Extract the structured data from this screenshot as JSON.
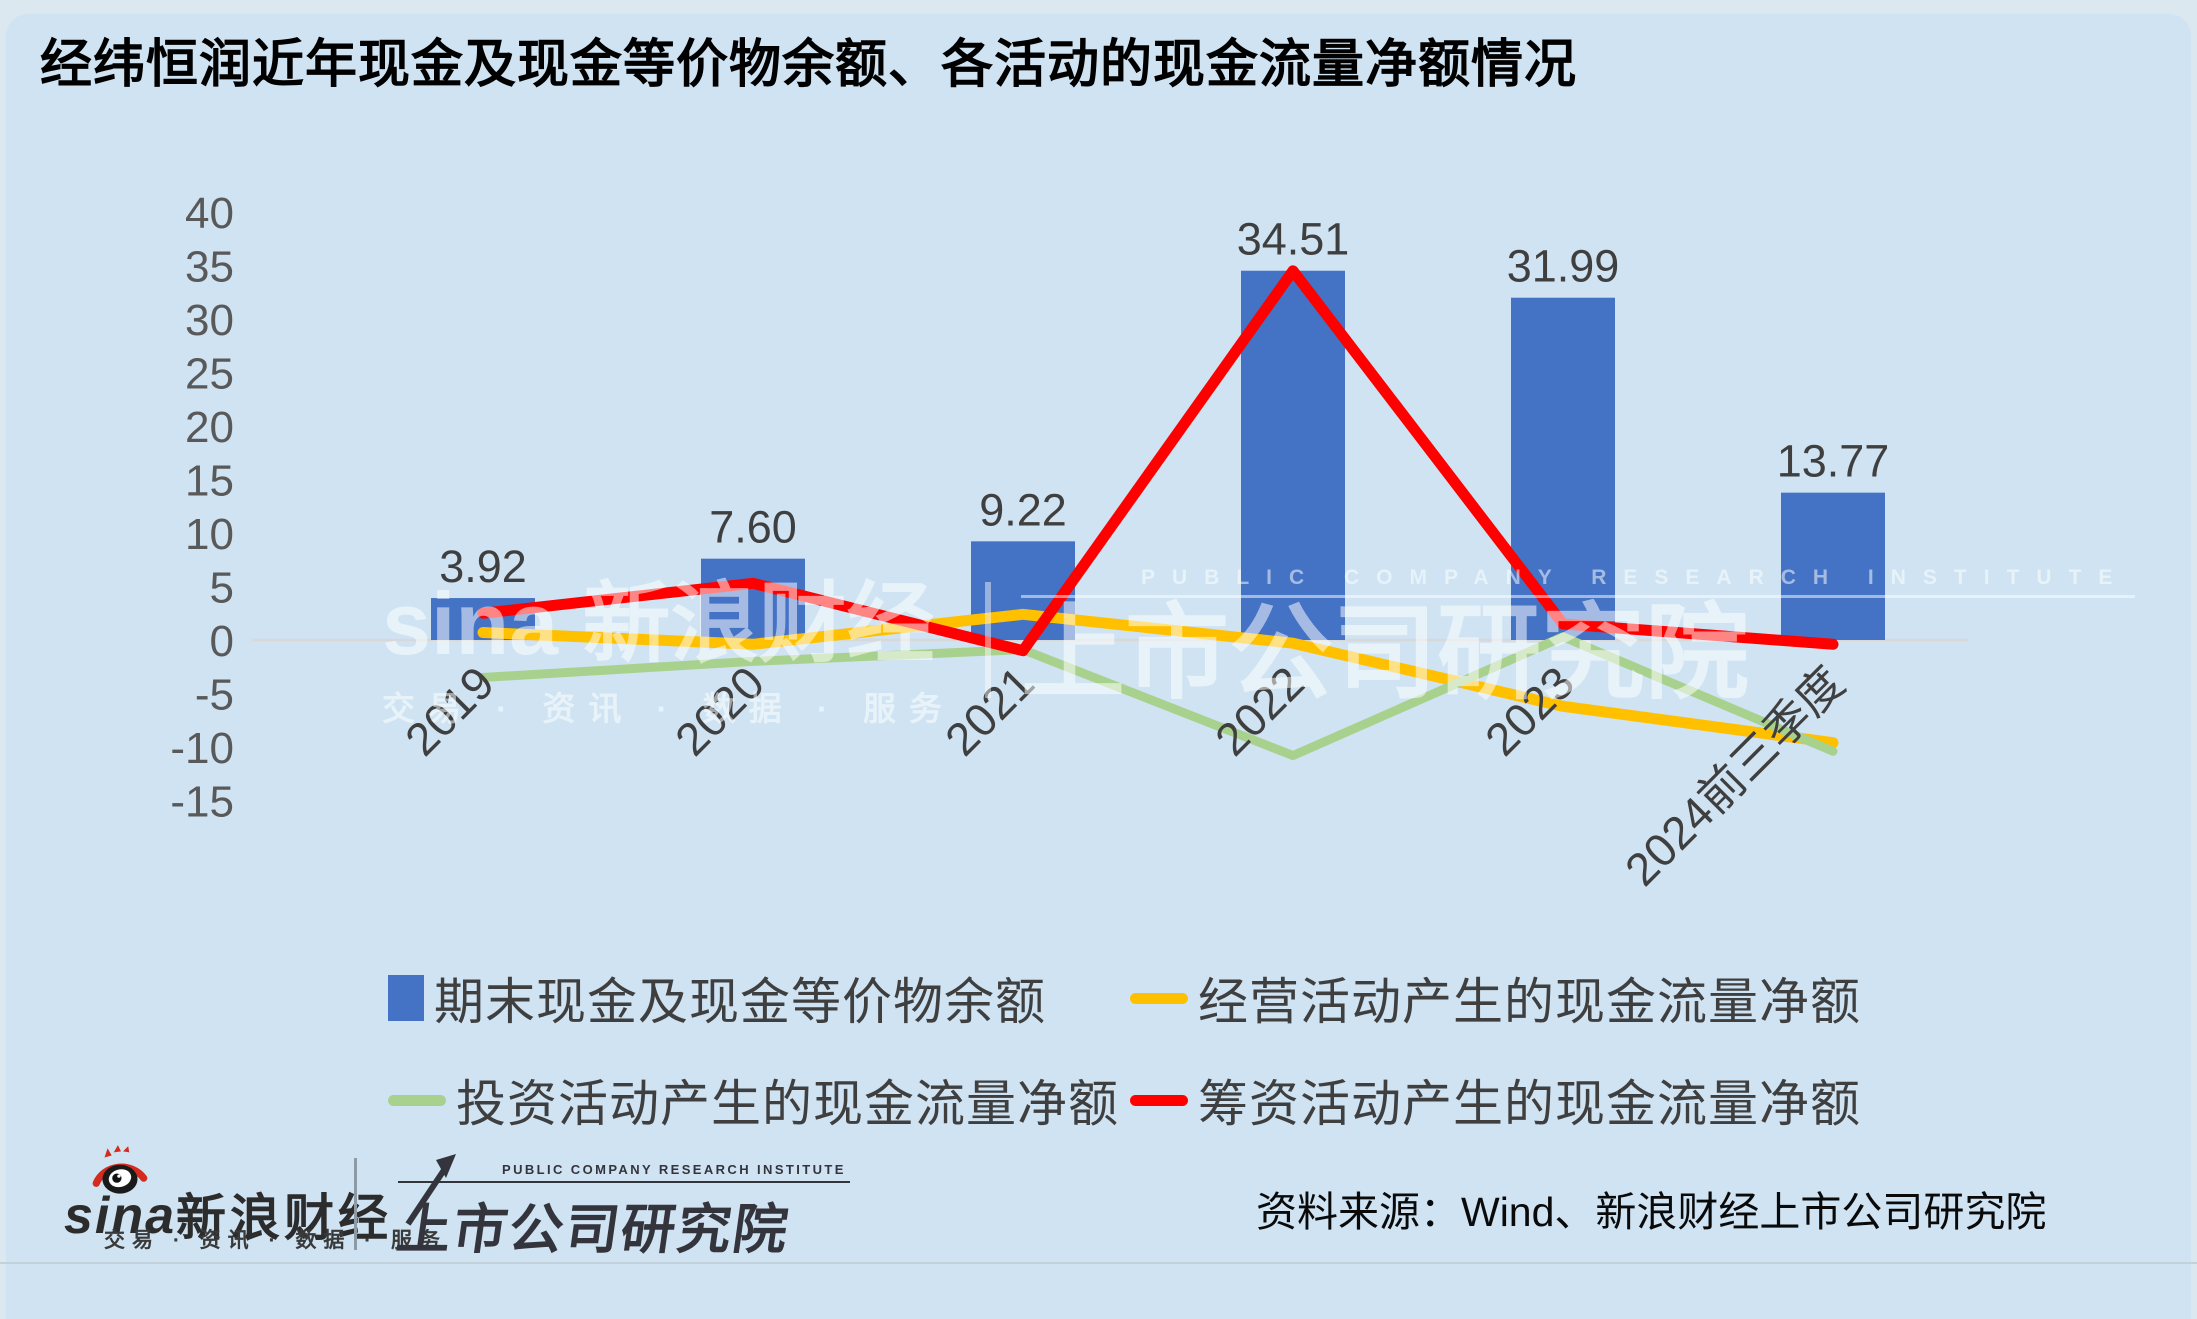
{
  "page": {
    "title": "经纬恒润近年现金及现金等价物余额、各活动的现金流量净额情况"
  },
  "colors": {
    "background": "#cfe3f3",
    "bar_blue": "#4472c4",
    "operating_yellow": "#ffc000",
    "investing_green": "#a9d18e",
    "financing_red": "#ff0000",
    "tick_text": "#595959",
    "label_text": "#3f3f3f",
    "zero_gridline": "#d8d8d8"
  },
  "watermark": {
    "brand": "sina 新浪财经",
    "tagline": "交易 · 资讯 · 数据 · 服务",
    "institute_en": "PUBLIC COMPANY RESEARCH INSTITUTE",
    "institute": "上市公司研究院"
  },
  "legend": {
    "items": [
      {
        "label": "期末现金及现金等价物余额",
        "marker": "square",
        "color": "#4472c4"
      },
      {
        "label": "经营活动产生的现金流量净额",
        "marker": "line",
        "color": "#ffc000"
      },
      {
        "label": "投资活动产生的现金流量净额",
        "marker": "line",
        "color": "#a9d18e"
      },
      {
        "label": "筹资活动产生的现金流量净额",
        "marker": "line",
        "color": "#ff0000"
      }
    ]
  },
  "footer": {
    "sina_wordmark": "sina",
    "sina_cn": "新浪财经",
    "sina_tagline": "交易 · 资讯 · 数据 · 服务",
    "institute_en": "PUBLIC COMPANY RESEARCH INSTITUTE",
    "institute_cn": "上市公司研究院",
    "source": "资料来源：Wind、新浪财经上市公司研究院"
  },
  "chart_data": {
    "type": "combo",
    "title": "经纬恒润近年现金及现金等价物余额、各活动的现金流量净额情况",
    "categories": [
      "2019",
      "2020",
      "2021",
      "2022",
      "2023",
      "2024前三季度"
    ],
    "y_axis": {
      "min": -15,
      "max": 40,
      "step": 5,
      "ticks": [
        40,
        35,
        30,
        25,
        20,
        15,
        10,
        5,
        0,
        -5,
        -10,
        -15
      ]
    },
    "gridlines": "zero-only",
    "legend_position": "bottom",
    "bar_series": {
      "name": "期末现金及现金等价物余额",
      "color": "#4472c4",
      "values": [
        3.92,
        7.6,
        9.22,
        34.51,
        31.99,
        13.77
      ],
      "data_labels": [
        "3.92",
        "7.60",
        "9.22",
        "34.51",
        "31.99",
        "13.77"
      ]
    },
    "line_series": [
      {
        "name": "经营活动产生的现金流量净额",
        "color": "#ffc000",
        "values_estimated": [
          0.7,
          -0.4,
          2.4,
          -0.3,
          -6.2,
          -9.6
        ]
      },
      {
        "name": "投资活动产生的现金流量净额",
        "color": "#a9d18e",
        "values_estimated": [
          -3.5,
          -2.0,
          -0.9,
          -10.8,
          0.3,
          -10.4
        ]
      },
      {
        "name": "筹资活动产生的现金流量净额",
        "color": "#ff0000",
        "values_estimated": [
          2.5,
          5.3,
          -1.0,
          34.5,
          1.5,
          -0.4
        ]
      }
    ]
  }
}
